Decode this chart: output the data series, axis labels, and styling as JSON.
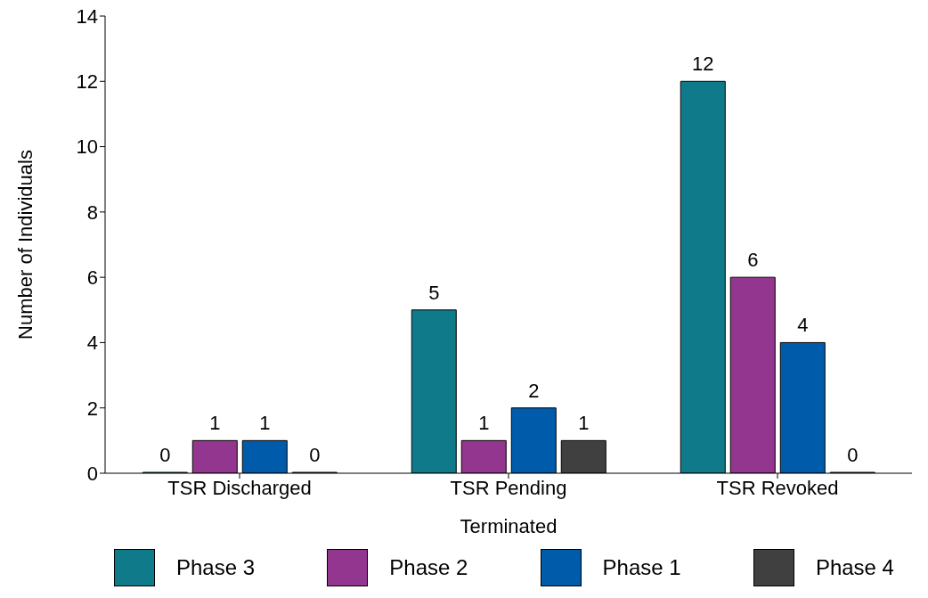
{
  "chart_data": {
    "type": "bar",
    "xlabel": "Terminated",
    "ylabel": "Number of Individuals",
    "categories": [
      "TSR Discharged",
      "TSR Pending",
      "TSR Revoked"
    ],
    "series": [
      {
        "name": "Phase 3",
        "color": "#0e7a8a",
        "values": [
          0,
          5,
          12
        ]
      },
      {
        "name": "Phase 2",
        "color": "#93368f",
        "values": [
          1,
          1,
          6
        ]
      },
      {
        "name": "Phase 1",
        "color": "#005bab",
        "values": [
          1,
          2,
          4
        ]
      },
      {
        "name": "Phase 4",
        "color": "#404040",
        "values": [
          0,
          1,
          0
        ]
      }
    ],
    "ylim": [
      0,
      14
    ],
    "yticks": [
      0,
      2,
      4,
      6,
      8,
      10,
      12,
      14
    ],
    "grid": false,
    "legend": "bottom",
    "data_labels": true
  }
}
